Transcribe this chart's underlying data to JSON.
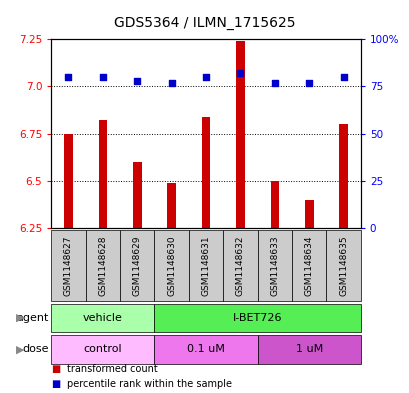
{
  "title": "GDS5364 / ILMN_1715625",
  "samples": [
    "GSM1148627",
    "GSM1148628",
    "GSM1148629",
    "GSM1148630",
    "GSM1148631",
    "GSM1148632",
    "GSM1148633",
    "GSM1148634",
    "GSM1148635"
  ],
  "bar_values": [
    6.75,
    6.82,
    6.6,
    6.49,
    6.84,
    7.24,
    6.5,
    6.4,
    6.8
  ],
  "dot_values": [
    80,
    80,
    78,
    77,
    80,
    82,
    77,
    77,
    80
  ],
  "ylim_left": [
    6.25,
    7.25
  ],
  "ylim_right": [
    0,
    100
  ],
  "yticks_left": [
    6.25,
    6.5,
    6.75,
    7.0,
    7.25
  ],
  "yticks_right": [
    0,
    25,
    50,
    75,
    100
  ],
  "ytick_labels_right": [
    "0",
    "25",
    "50",
    "75",
    "100%"
  ],
  "bar_color": "#cc0000",
  "dot_color": "#0000cc",
  "agent_row": [
    {
      "label": "vehicle",
      "start": 0,
      "end": 3,
      "color": "#aaffaa"
    },
    {
      "label": "I-BET726",
      "start": 3,
      "end": 9,
      "color": "#55ee55"
    }
  ],
  "dose_row": [
    {
      "label": "control",
      "start": 0,
      "end": 3,
      "color": "#ffbbff"
    },
    {
      "label": "0.1 uM",
      "start": 3,
      "end": 6,
      "color": "#ee77ee"
    },
    {
      "label": "1 uM",
      "start": 6,
      "end": 9,
      "color": "#cc55cc"
    }
  ],
  "legend_items": [
    {
      "color": "#cc0000",
      "label": "transformed count"
    },
    {
      "color": "#0000cc",
      "label": "percentile rank within the sample"
    }
  ],
  "bg_color": "#ffffff",
  "sample_box_color": "#cccccc",
  "title_fontsize": 10,
  "tick_fontsize": 7.5,
  "sample_fontsize": 6.5,
  "row_label_fontsize": 8,
  "legend_fontsize": 7
}
